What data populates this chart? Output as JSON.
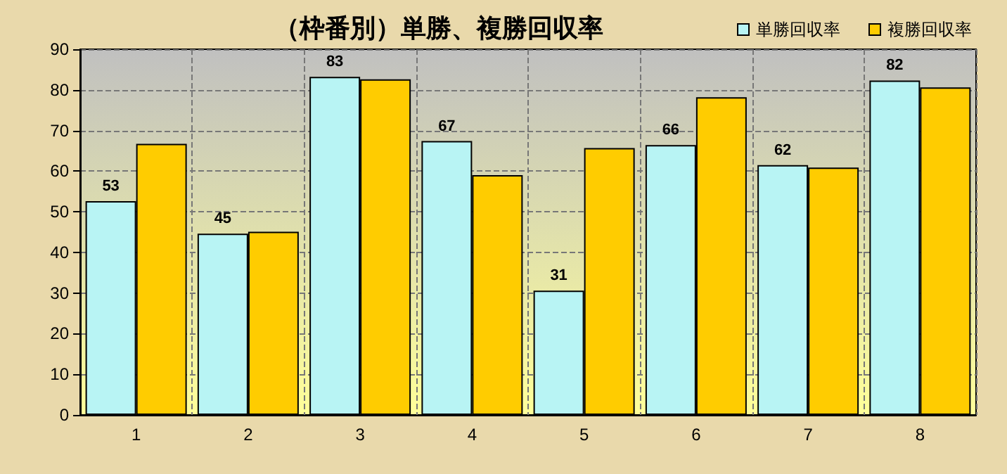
{
  "chart_data": {
    "type": "bar",
    "title": "（枠番別）単勝、複勝回収率",
    "categories": [
      "1",
      "2",
      "3",
      "4",
      "5",
      "6",
      "7",
      "8"
    ],
    "series": [
      {
        "name": "単勝回収率",
        "color": "#b8f4f4",
        "values": [
          52.6,
          44.6,
          83.2,
          67.4,
          30.6,
          66.4,
          61.5,
          82.3
        ],
        "value_labels": [
          "53",
          "45",
          "83",
          "67",
          "31",
          "66",
          "62",
          "82"
        ]
      },
      {
        "name": "複勝回収率",
        "color": "#ffcc00",
        "values": [
          66.7,
          45.1,
          82.6,
          59.0,
          65.7,
          78.2,
          60.9,
          80.6
        ]
      }
    ],
    "ylim": [
      0,
      90
    ],
    "yticks": [
      0,
      10,
      20,
      30,
      40,
      50,
      60,
      70,
      80,
      90
    ],
    "grid": true,
    "legend": "top right"
  }
}
